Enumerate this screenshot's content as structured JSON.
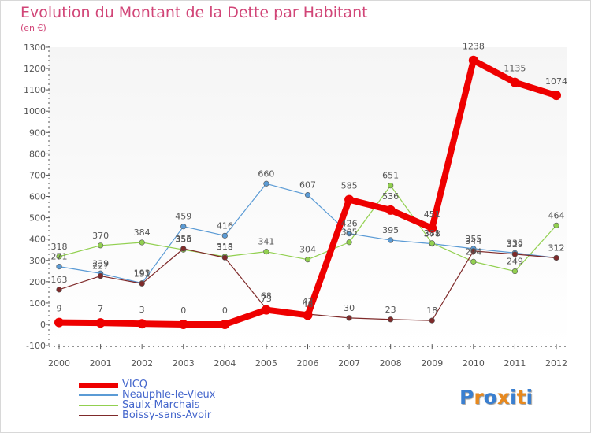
{
  "title": "Evolution du Montant de la Dette par Habitant",
  "subtitle": "(en €)",
  "logo_text": "Proxiti",
  "chart_data": {
    "type": "line",
    "title": "Evolution du Montant de la Dette par Habitant",
    "subtitle": "(en €)",
    "xlabel": "",
    "ylabel": "",
    "x": [
      2000,
      2001,
      2002,
      2003,
      2004,
      2005,
      2006,
      2007,
      2008,
      2009,
      2010,
      2011,
      2012
    ],
    "ylim": [
      -100,
      1300
    ],
    "yticks": [
      -100,
      0,
      100,
      200,
      300,
      400,
      500,
      600,
      700,
      800,
      900,
      1000,
      1100,
      1200,
      1300
    ],
    "grid": false,
    "legend_position": "bottom-left",
    "series": [
      {
        "name": "Neauphle-le-Vieux",
        "color": "#5b9bd5",
        "values": [
          271,
          239,
          193,
          459,
          416,
          660,
          607,
          426,
          395,
          378,
          355,
          335,
          312
        ]
      },
      {
        "name": "Saulx-Marchais",
        "color": "#92d050",
        "values": [
          318,
          370,
          384,
          350,
          318,
          341,
          304,
          385,
          651,
          381,
          294,
          249,
          464
        ]
      },
      {
        "name": "Boissy-sans-Avoir",
        "color": "#7f2a2a",
        "values": [
          163,
          227,
          191,
          355,
          313,
          73,
          48,
          30,
          23,
          18,
          344,
          329,
          312
        ]
      },
      {
        "name": "VICQ",
        "color": "#ee0000",
        "values": [
          9,
          7,
          3,
          0,
          0,
          68,
          43,
          585,
          536,
          451,
          1238,
          1135,
          1074
        ]
      }
    ]
  },
  "colors": {
    "title": "#d14577",
    "axis": "#555555",
    "legend_text": "#4466cc",
    "logo": [
      "#3a7fd0",
      "#e8891e",
      "#3a7fd0",
      "#e8891e",
      "#3a7fd0",
      "#e8891e",
      "#3a7fd0"
    ]
  }
}
